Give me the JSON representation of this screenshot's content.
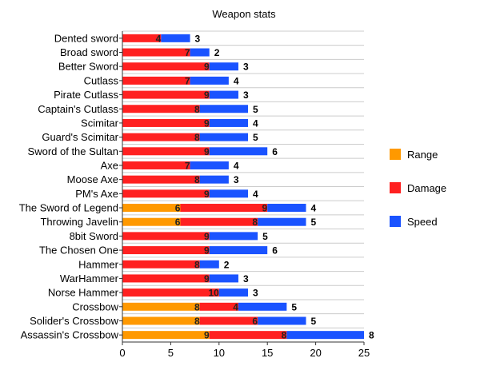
{
  "chart_data": {
    "type": "bar",
    "orientation": "horizontal",
    "stacked": true,
    "title": "Weapon stats",
    "xlabel": "",
    "ylabel": "",
    "xlim": [
      0,
      25
    ],
    "xticks": [
      0,
      5,
      10,
      15,
      20,
      25
    ],
    "grid": true,
    "legend_position": "right",
    "categories": [
      "Dented sword",
      "Broad sword",
      "Better Sword",
      "Cutlass",
      "Pirate Cutlass",
      "Captain's Cutlass",
      "Scimitar",
      "Guard's Scimitar",
      "Sword of the Sultan",
      "Axe",
      "Moose Axe",
      "PM's Axe",
      "The Sword of Legend",
      "Throwing Javelin",
      "8bit Sword",
      "The Chosen One",
      "Hammer",
      "WarHammer",
      "Norse Hammer",
      "Crossbow",
      "Solider's Crossbow",
      "Assassin's Crossbow"
    ],
    "series": [
      {
        "name": "Range",
        "color": "#ff9900",
        "values": [
          0,
          0,
          0,
          0,
          0,
          0,
          0,
          0,
          0,
          0,
          0,
          0,
          6,
          6,
          0,
          0,
          0,
          0,
          0,
          8,
          8,
          9
        ]
      },
      {
        "name": "Damage",
        "color": "#ff2020",
        "values": [
          4,
          7,
          9,
          7,
          9,
          8,
          9,
          8,
          9,
          7,
          8,
          9,
          9,
          8,
          9,
          9,
          8,
          9,
          10,
          4,
          6,
          8
        ]
      },
      {
        "name": "Speed",
        "color": "#1a53ff",
        "values": [
          3,
          2,
          3,
          4,
          3,
          5,
          4,
          5,
          6,
          4,
          3,
          4,
          4,
          5,
          5,
          6,
          2,
          3,
          3,
          5,
          5,
          8
        ]
      }
    ]
  }
}
